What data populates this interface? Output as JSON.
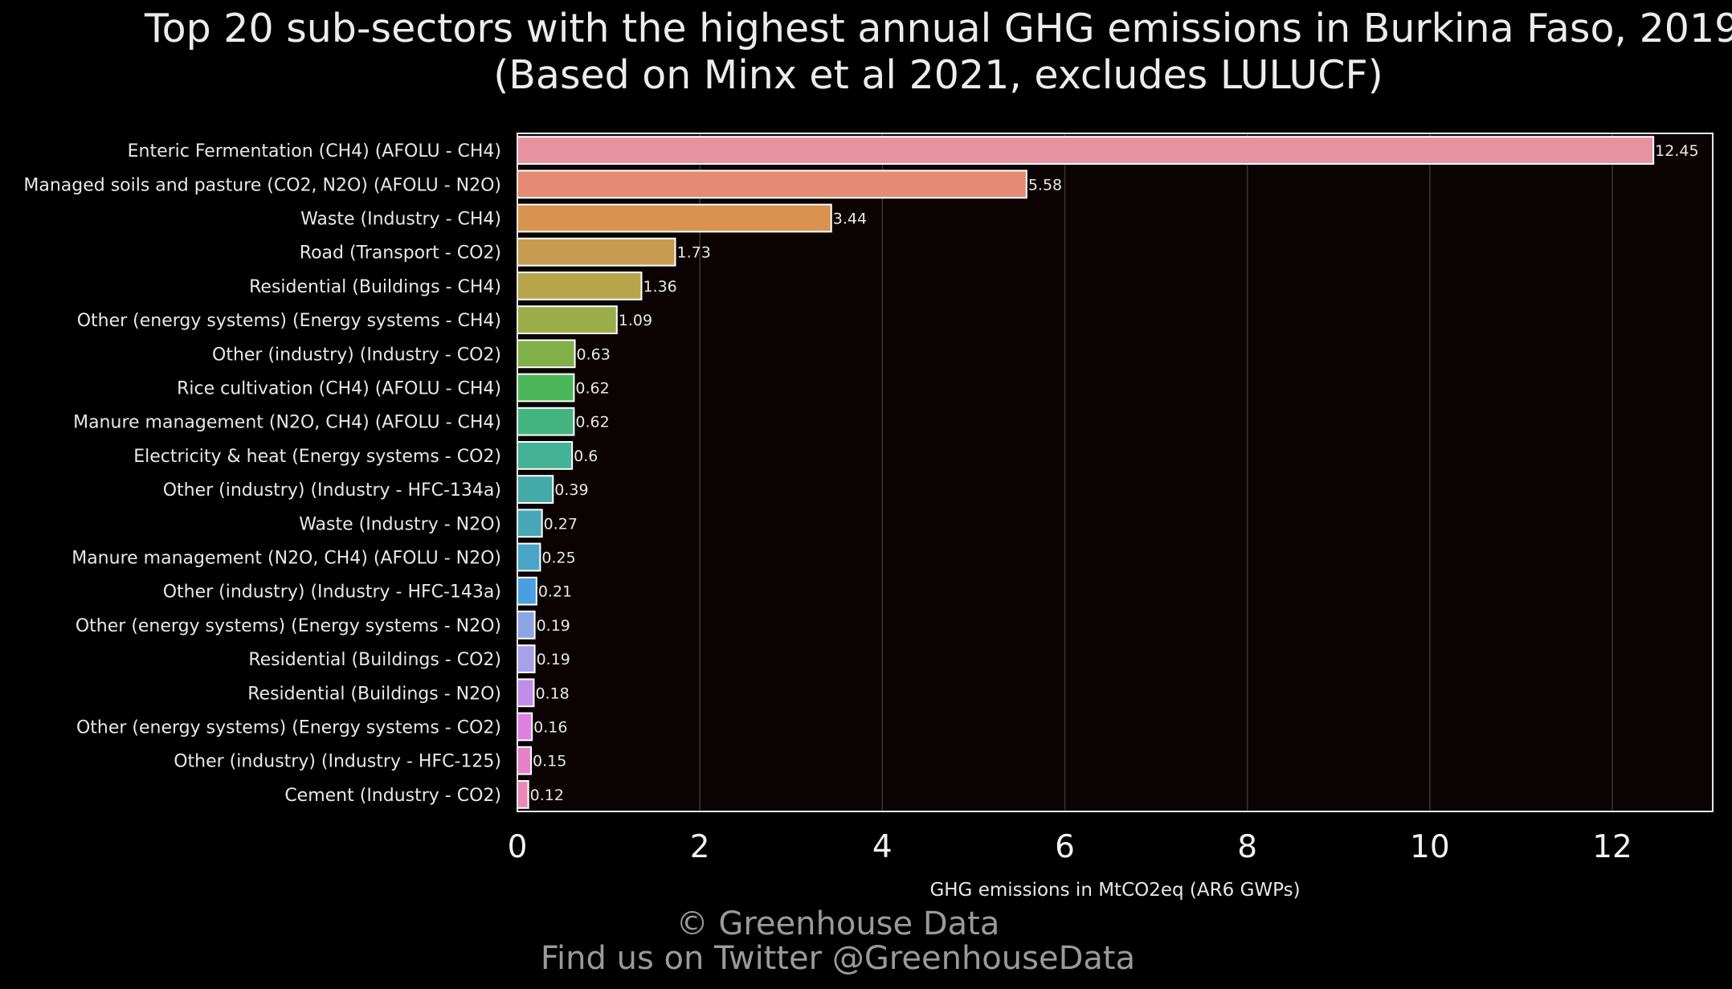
{
  "chart_data": {
    "type": "bar",
    "orientation": "horizontal",
    "title": "Top 20 sub-sectors with the highest annual GHG emissions in Burkina Faso, 2019",
    "subtitle": "(Based on Minx et al 2021, excludes LULUCF)",
    "xlabel": "GHG emissions in MtCO2eq (AR6 GWPs)",
    "ylabel": "",
    "xlim": [
      0,
      13.1
    ],
    "xticks": [
      "0",
      "2",
      "4",
      "6",
      "8",
      "10",
      "12"
    ],
    "grid": "vertical",
    "legend": "none",
    "background": "#0b0303",
    "categories": [
      "Enteric Fermentation (CH4) (AFOLU - CH4)",
      "Managed soils and pasture (CO2, N2O) (AFOLU - N2O)",
      "Waste (Industry - CH4)",
      "Road (Transport - CO2)",
      "Residential (Buildings - CH4)",
      "Other (energy systems) (Energy systems - CH4)",
      "Other (industry) (Industry - CO2)",
      "Rice cultivation (CH4) (AFOLU - CH4)",
      "Manure management (N2O, CH4) (AFOLU - CH4)",
      "Electricity & heat (Energy systems - CO2)",
      "Other (industry) (Industry - HFC-134a)",
      "Waste (Industry - N2O)",
      "Manure management (N2O, CH4) (AFOLU - N2O)",
      "Other (industry) (Industry - HFC-143a)",
      "Other (energy systems) (Energy systems - N2O)",
      "Residential (Buildings - CO2)",
      "Residential (Buildings - N2O)",
      "Other (energy systems) (Energy systems - CO2)",
      "Other (industry) (Industry - HFC-125)",
      "Cement (Industry - CO2)"
    ],
    "values": [
      12.45,
      5.58,
      3.44,
      1.73,
      1.36,
      1.09,
      0.63,
      0.62,
      0.62,
      0.6,
      0.39,
      0.27,
      0.25,
      0.21,
      0.19,
      0.19,
      0.18,
      0.16,
      0.15,
      0.12
    ],
    "value_labels": [
      "12.45",
      "5.58",
      "3.44",
      "1.73",
      "1.36",
      "1.09",
      "0.63",
      "0.62",
      "0.62",
      "0.6",
      "0.39",
      "0.27",
      "0.25",
      "0.21",
      "0.19",
      "0.19",
      "0.18",
      "0.16",
      "0.15",
      "0.12"
    ],
    "colors": [
      "#e8929f",
      "#e58a73",
      "#d9924f",
      "#c79b4f",
      "#b5a44a",
      "#9aad49",
      "#80b047",
      "#4ab657",
      "#44b580",
      "#43b295",
      "#45aaa7",
      "#48a7b6",
      "#4aa5c8",
      "#4a9fe0",
      "#8da4e6",
      "#a8a1ea",
      "#c08eea",
      "#de80e2",
      "#e680c8",
      "#e98ab5"
    ]
  },
  "credits": {
    "line1": "© Greenhouse Data",
    "line2": "Find us on Twitter @GreenhouseData"
  }
}
